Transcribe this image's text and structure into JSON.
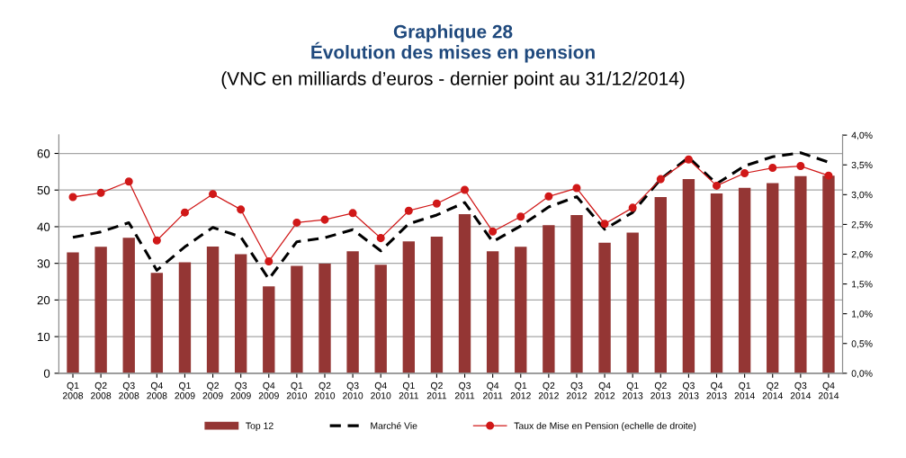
{
  "chart_data": {
    "type": "bar",
    "title": "Graphique 28\nÉvolution des mises en pension",
    "subtitle": "(VNC en milliards d’euros - dernier point au 31/12/2014)",
    "categories": [
      "Q1\n2008",
      "Q2\n2008",
      "Q3\n2008",
      "Q4\n2008",
      "Q1\n2009",
      "Q2\n2009",
      "Q3\n2009",
      "Q4\n2009",
      "Q1\n2010",
      "Q2\n2010",
      "Q3\n2010",
      "Q4\n2010",
      "Q1\n2011",
      "Q2\n2011",
      "Q3\n2011",
      "Q4\n2011",
      "Q1\n2012",
      "Q2\n2012",
      "Q3\n2012",
      "Q4\n2012",
      "Q1\n2013",
      "Q2\n2013",
      "Q3\n2013",
      "Q4\n2013",
      "Q1\n2014",
      "Q2\n2014",
      "Q3\n2014",
      "Q4\n2014"
    ],
    "series": [
      {
        "name": "Top 12",
        "color": "#943634",
        "values": [
          33,
          34.5,
          37,
          27.4,
          30.3,
          34.6,
          32.5,
          23.7,
          29.3,
          29.9,
          33.3,
          29.6,
          36,
          37.3,
          43.4,
          33.3,
          34.5,
          40.4,
          43.2,
          35.6,
          38.4,
          48.1,
          53,
          49.1,
          50.6,
          51.9,
          53.8,
          53.9
        ]
      },
      {
        "name": "Marché Vie",
        "type": "line",
        "color": "#000000",
        "line_style": "dashed",
        "marker": "none",
        "values": [
          37.1,
          38.6,
          41.1,
          28.1,
          34.5,
          39.8,
          37.2,
          25.7,
          35.9,
          37,
          39.2,
          33.4,
          40.8,
          43.2,
          46.6,
          35.9,
          40.2,
          45.4,
          48.2,
          39.3,
          43.9,
          53,
          58.9,
          51.7,
          56.6,
          59.1,
          60.2,
          57.6
        ]
      },
      {
        "name": "Taux de Mise en Pension (echelle de droite)",
        "type": "line",
        "axis": "y2",
        "color": "#d01818",
        "line_style": "solid",
        "marker": "circle",
        "values": [
          2.96,
          3.03,
          3.22,
          2.23,
          2.7,
          3.01,
          2.75,
          1.88,
          2.53,
          2.58,
          2.69,
          2.27,
          2.73,
          2.85,
          3.08,
          2.38,
          2.63,
          2.97,
          3.11,
          2.51,
          2.78,
          3.26,
          3.59,
          3.15,
          3.36,
          3.45,
          3.48,
          3.32
        ]
      }
    ],
    "ylim": [
      0,
      65
    ],
    "yticks": [
      0,
      10,
      20,
      30,
      40,
      50,
      60
    ],
    "y2lim": [
      0,
      4
    ],
    "y2ticks": [
      {
        "value": 0,
        "label": "0,0%"
      },
      {
        "value": 0.5,
        "label": "0,5%"
      },
      {
        "value": 1,
        "label": "1,0%"
      },
      {
        "value": 1.5,
        "label": "1,5%"
      },
      {
        "value": 2,
        "label": "2,0%"
      },
      {
        "value": 2.5,
        "label": "2,5%"
      },
      {
        "value": 3,
        "label": "3,0%"
      },
      {
        "value": 3.5,
        "label": "3,5%"
      },
      {
        "value": 4,
        "label": "4,0%"
      }
    ],
    "grid": "y",
    "legend": "bottom"
  }
}
